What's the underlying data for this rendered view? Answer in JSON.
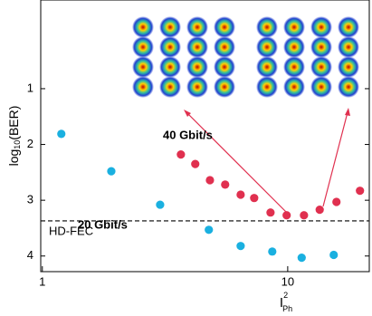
{
  "chart_data": {
    "type": "scatter",
    "x_label": "I",
    "x_label_sup": "2",
    "x_label_sub": "Ph",
    "y_label": [
      "log",
      "10",
      "(BER)"
    ],
    "x_log": true,
    "y_inverted": true,
    "xlim": [
      0.985,
      21.5
    ],
    "ylim": [
      -0.59,
      4.28
    ],
    "xticks": [
      1,
      10
    ],
    "yticks": [
      1,
      2,
      3,
      4
    ],
    "reference_line": {
      "value": 3.37,
      "label": "HD-FEC"
    },
    "series": [
      {
        "name": "20 Gbit/s",
        "color": "#1ab0e0",
        "x": [
          1.195,
          1.91,
          3.02,
          4.77,
          6.43,
          8.65,
          11.4,
          15.4
        ],
        "values": [
          1.81,
          2.48,
          3.08,
          3.53,
          3.82,
          3.92,
          4.03,
          3.98
        ]
      },
      {
        "name": "40 Gbit/s",
        "color": "#e0304f",
        "x": [
          3.67,
          4.2,
          4.82,
          5.56,
          6.43,
          7.3,
          8.51,
          9.9,
          11.65,
          13.5,
          15.8,
          19.7
        ],
        "values": [
          2.18,
          2.35,
          2.64,
          2.72,
          2.9,
          2.96,
          3.22,
          3.27,
          3.27,
          3.17,
          3.03,
          2.83
        ]
      }
    ]
  }
}
